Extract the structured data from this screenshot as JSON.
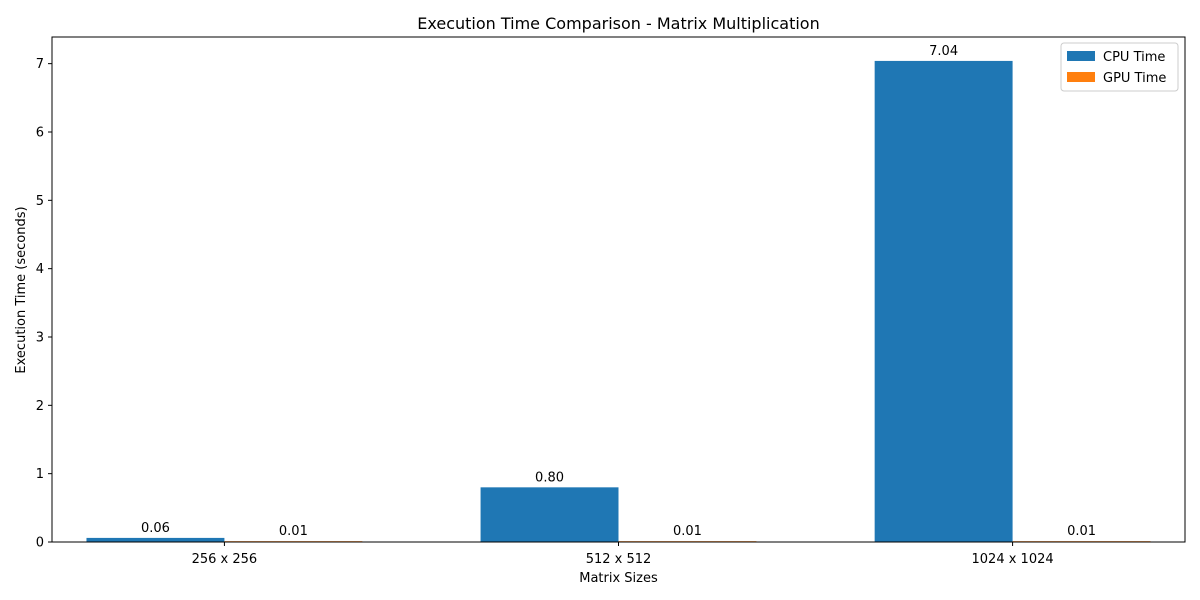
{
  "chart_data": {
    "type": "bar",
    "title": "Execution Time Comparison - Matrix Multiplication",
    "xlabel": "Matrix Sizes",
    "ylabel": "Execution Time (seconds)",
    "categories": [
      "256 x 256",
      "512 x 512",
      "1024 x 1024"
    ],
    "series": [
      {
        "name": "CPU Time",
        "color": "#1f77b4",
        "values": [
          0.06,
          0.8,
          7.04
        ],
        "labels": [
          "0.06",
          "0.80",
          "7.04"
        ]
      },
      {
        "name": "GPU Time",
        "color": "#ff7f0e",
        "values": [
          0.01,
          0.01,
          0.01
        ],
        "labels": [
          "0.01",
          "0.01",
          "0.01"
        ]
      }
    ],
    "ylim": [
      0,
      7.39
    ],
    "yticks": [
      0,
      1,
      2,
      3,
      4,
      5,
      6,
      7
    ],
    "legend_position": "top-right",
    "grid": false
  }
}
